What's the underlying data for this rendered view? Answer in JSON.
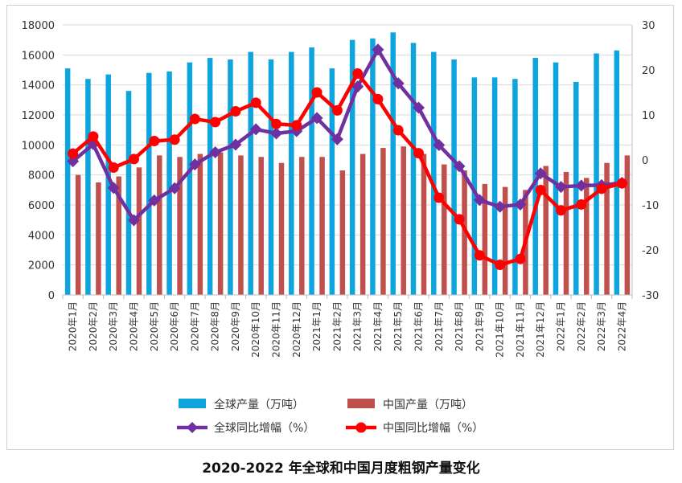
{
  "caption": "2020-2022 年全球和中国月度粗钢产量变化",
  "chart_data": {
    "type": "bar+line",
    "title": "",
    "categories": [
      "2020年1月",
      "2020年2月",
      "2020年3月",
      "2020年4月",
      "2020年5月",
      "2020年6月",
      "2020年7月",
      "2020年8月",
      "2020年9月",
      "2020年10月",
      "2020年11月",
      "2020年12月",
      "2021年1月",
      "2021年2月",
      "2021年3月",
      "2021年4月",
      "2021年5月",
      "2021年6月",
      "2021年7月",
      "2021年8月",
      "2021年9月",
      "2021年10月",
      "2021年11月",
      "2021年12月",
      "2022年1月",
      "2022年2月",
      "2022年3月",
      "2022年4月"
    ],
    "y_left": {
      "min": 0,
      "max": 18000,
      "step": 2000,
      "ticks": [
        "0",
        "2000",
        "4000",
        "6000",
        "8000",
        "10000",
        "12000",
        "14000",
        "16000",
        "18000"
      ]
    },
    "y_right": {
      "min": -30,
      "max": 30,
      "step": 10,
      "ticks": [
        "-30",
        "-20",
        "-10",
        "0",
        "10",
        "20",
        "30"
      ]
    },
    "series": [
      {
        "name": "全球产量（万吨）",
        "kind": "bar",
        "axis": "left",
        "color": "#0ea5de",
        "values": [
          15100,
          14400,
          14700,
          13600,
          14800,
          14900,
          15500,
          15800,
          15700,
          16200,
          15700,
          16200,
          16500,
          15100,
          17000,
          17100,
          17500,
          16800,
          16200,
          15700,
          14500,
          14500,
          14400,
          15800,
          15500,
          14200,
          16100,
          16300
        ]
      },
      {
        "name": "中国产量（万吨）",
        "kind": "bar",
        "axis": "left",
        "color": "#c0504d",
        "values": [
          8000,
          7500,
          7900,
          8500,
          9300,
          9200,
          9400,
          9500,
          9300,
          9200,
          8800,
          9200,
          9200,
          8300,
          9400,
          9800,
          9900,
          9400,
          8700,
          8300,
          7400,
          7200,
          7000,
          8600,
          8200,
          7800,
          8800,
          9300
        ]
      },
      {
        "name": "全球同比增幅（%）",
        "kind": "line",
        "axis": "right",
        "color": "#7030a0",
        "marker": "diamond",
        "values": [
          -0.3,
          3.5,
          -6.2,
          -13.4,
          -9,
          -6.3,
          -1,
          1.7,
          3.4,
          6.8,
          5.9,
          6.4,
          9.3,
          4.6,
          16.3,
          24.5,
          17,
          11.6,
          3.3,
          -1.4,
          -8.9,
          -10.4,
          -9.9,
          -3,
          -6,
          -5.7,
          -5.6,
          -5.1
        ]
      },
      {
        "name": "中国同比增幅（%）",
        "kind": "line",
        "axis": "right",
        "color": "#ff0000",
        "marker": "circle",
        "values": [
          1.4,
          5.2,
          -1.7,
          0.2,
          4.2,
          4.5,
          9.1,
          8.4,
          10.8,
          12.7,
          8,
          7.7,
          15,
          11,
          19.2,
          13.5,
          6.6,
          1.5,
          -8.4,
          -13.2,
          -21.2,
          -23.3,
          -22,
          -6.7,
          -11.2,
          -9.9,
          -6.4,
          -5.2
        ]
      }
    ],
    "legend_position": "bottom",
    "grid": "horizontal"
  }
}
